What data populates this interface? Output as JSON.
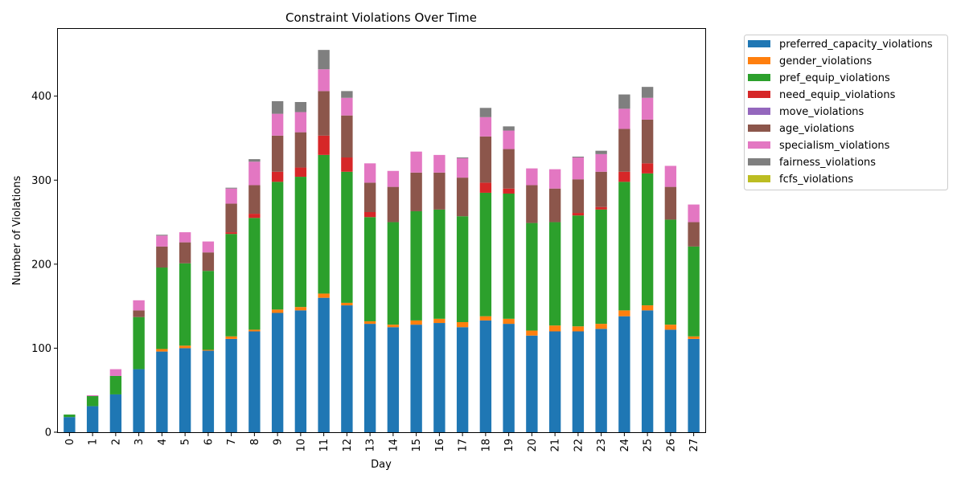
{
  "chart_data": {
    "type": "bar",
    "stacked": true,
    "title": "Constraint Violations Over Time",
    "xlabel": "Day",
    "ylabel": "Number of Violations",
    "ylim": [
      0,
      480
    ],
    "yticks": [
      0,
      100,
      200,
      300,
      400
    ],
    "legend_position": "outside-right",
    "categories": [
      "0",
      "1",
      "2",
      "3",
      "4",
      "5",
      "6",
      "7",
      "8",
      "9",
      "10",
      "11",
      "12",
      "13",
      "14",
      "15",
      "16",
      "17",
      "18",
      "19",
      "20",
      "21",
      "22",
      "23",
      "24",
      "25",
      "26",
      "27"
    ],
    "series": [
      {
        "name": "preferred_capacity_violations",
        "color": "#1f77b4",
        "values": [
          18,
          31,
          45,
          75,
          96,
          100,
          97,
          111,
          120,
          142,
          145,
          160,
          151,
          129,
          125,
          128,
          130,
          125,
          133,
          129,
          115,
          120,
          120,
          123,
          138,
          145,
          122,
          111
        ]
      },
      {
        "name": "gender_violations",
        "color": "#ff7f0e",
        "values": [
          0,
          0,
          0,
          0,
          3,
          3,
          1,
          3,
          2,
          4,
          4,
          5,
          3,
          3,
          3,
          5,
          5,
          6,
          5,
          6,
          6,
          7,
          6,
          6,
          7,
          6,
          6,
          3
        ]
      },
      {
        "name": "pref_equip_violations",
        "color": "#2ca02c",
        "values": [
          3,
          12,
          22,
          62,
          97,
          98,
          94,
          122,
          133,
          152,
          155,
          165,
          156,
          124,
          122,
          130,
          130,
          126,
          147,
          149,
          128,
          123,
          132,
          136,
          153,
          157,
          125,
          107
        ]
      },
      {
        "name": "need_equip_violations",
        "color": "#d62728",
        "values": [
          0,
          0,
          0,
          0,
          0,
          0,
          0,
          2,
          5,
          12,
          11,
          23,
          17,
          6,
          0,
          0,
          0,
          0,
          12,
          6,
          0,
          0,
          3,
          3,
          12,
          12,
          0,
          0
        ]
      },
      {
        "name": "move_violations",
        "color": "#9467bd",
        "values": [
          0,
          0,
          0,
          0,
          0,
          0,
          0,
          0,
          0,
          0,
          0,
          0,
          0,
          0,
          0,
          0,
          0,
          0,
          0,
          0,
          0,
          0,
          0,
          0,
          0,
          0,
          0,
          0
        ]
      },
      {
        "name": "age_violations",
        "color": "#8c564b",
        "values": [
          0,
          0,
          0,
          8,
          25,
          25,
          22,
          34,
          34,
          43,
          42,
          53,
          50,
          35,
          42,
          46,
          44,
          46,
          55,
          47,
          45,
          40,
          40,
          42,
          51,
          52,
          39,
          29
        ]
      },
      {
        "name": "specialism_violations",
        "color": "#e377c2",
        "values": [
          0,
          1,
          8,
          12,
          13,
          12,
          13,
          18,
          28,
          26,
          24,
          26,
          21,
          23,
          19,
          25,
          21,
          23,
          23,
          22,
          20,
          23,
          26,
          21,
          24,
          26,
          25,
          21
        ]
      },
      {
        "name": "fairness_violations",
        "color": "#7f7f7f",
        "values": [
          0,
          0,
          0,
          0,
          1,
          0,
          0,
          1,
          3,
          15,
          12,
          23,
          8,
          0,
          0,
          0,
          0,
          1,
          11,
          5,
          0,
          0,
          1,
          4,
          17,
          13,
          0,
          0
        ]
      },
      {
        "name": "fcfs_violations",
        "color": "#bcbd22",
        "values": [
          0,
          0,
          0,
          0,
          0,
          0,
          0,
          0,
          0,
          0,
          0,
          0,
          0,
          0,
          0,
          0,
          0,
          0,
          0,
          0,
          0,
          0,
          0,
          0,
          0,
          0,
          0,
          0
        ]
      }
    ]
  }
}
